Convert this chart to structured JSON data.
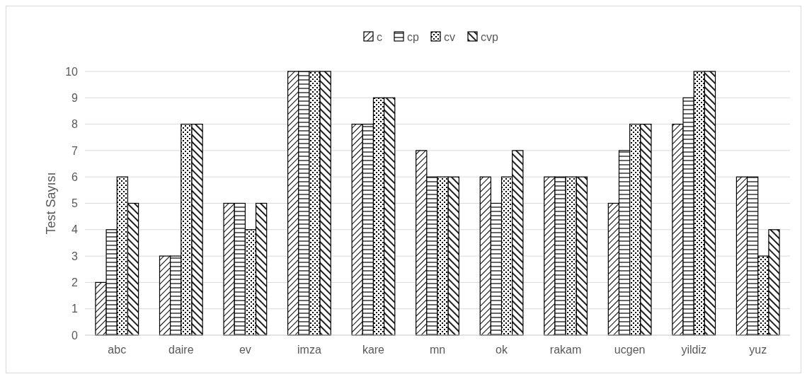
{
  "chart_data": {
    "type": "bar",
    "ylabel": "Test Sayısı",
    "categories": [
      "abc",
      "daire",
      "ev",
      "imza",
      "kare",
      "mn",
      "ok",
      "rakam",
      "ucgen",
      "yildiz",
      "yuz"
    ],
    "series": [
      {
        "name": "c",
        "color": "#000000",
        "values": [
          2,
          3,
          5,
          10,
          8,
          7,
          6,
          6,
          5,
          8,
          6
        ]
      },
      {
        "name": "cp",
        "color": "#000000",
        "values": [
          4,
          3,
          5,
          10,
          8,
          6,
          5,
          6,
          7,
          9,
          6
        ]
      },
      {
        "name": "cv",
        "color": "#000000",
        "values": [
          6,
          8,
          4,
          10,
          9,
          6,
          6,
          6,
          8,
          10,
          3
        ]
      },
      {
        "name": "cvp",
        "color": "#000000",
        "values": [
          5,
          8,
          5,
          10,
          9,
          6,
          7,
          6,
          8,
          10,
          4
        ]
      }
    ],
    "ylim": [
      0,
      10
    ],
    "yticks": [
      0,
      1,
      2,
      3,
      4,
      5,
      6,
      7,
      8,
      9,
      10
    ],
    "grid": "y",
    "legend": "top"
  }
}
